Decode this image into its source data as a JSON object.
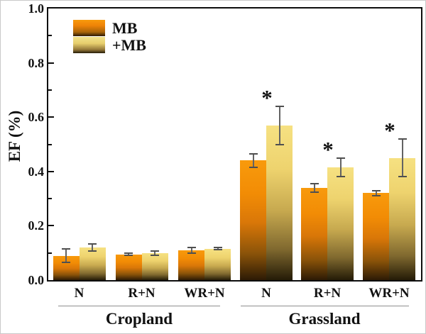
{
  "figure": {
    "ylabel": "EF (%)",
    "legend": [
      {
        "label": "MB",
        "swatch_top_color": "#f89a0c",
        "swatch_bottom_color": "#2c1a05"
      },
      {
        "label": "+MB",
        "swatch_top_color": "#f2e28c",
        "swatch_bottom_color": "#241b07"
      }
    ],
    "group_labels": [
      "Cropland",
      "Grassland"
    ]
  },
  "chart_data": {
    "type": "bar",
    "title": "",
    "xlabel": "",
    "ylabel": "EF (%)",
    "ylim": [
      0.0,
      1.0
    ],
    "ytick_labels": [
      "0.0",
      "0.2",
      "0.4",
      "0.6",
      "0.8",
      "1.0"
    ],
    "ytick_values": [
      0.0,
      0.2,
      0.4,
      0.6,
      0.8,
      1.0
    ],
    "minor_tick_values": [
      0.1,
      0.3,
      0.5,
      0.7,
      0.9
    ],
    "grid": false,
    "legend_position": "top-left",
    "groups": [
      {
        "name": "Cropland",
        "categories": [
          "N",
          "R+N",
          "WR+N"
        ]
      },
      {
        "name": "Grassland",
        "categories": [
          "N",
          "R+N",
          "WR+N"
        ]
      }
    ],
    "categories": [
      "N",
      "R+N",
      "WR+N",
      "N",
      "R+N",
      "WR+N"
    ],
    "category_groups": [
      "Cropland",
      "Cropland",
      "Cropland",
      "Grassland",
      "Grassland",
      "Grassland"
    ],
    "series": [
      {
        "name": "MB",
        "values": [
          0.09,
          0.095,
          0.11,
          0.44,
          0.34,
          0.32
        ],
        "errors": [
          0.025,
          0.004,
          0.01,
          0.025,
          0.015,
          0.008
        ]
      },
      {
        "name": "+MB",
        "values": [
          0.12,
          0.1,
          0.115,
          0.57,
          0.415,
          0.45
        ],
        "errors": [
          0.012,
          0.008,
          0.004,
          0.07,
          0.035,
          0.07
        ]
      }
    ],
    "significance": {
      "symbol": "*",
      "marked_series": "+MB",
      "marked_category_indices": [
        3,
        4,
        5
      ]
    }
  }
}
